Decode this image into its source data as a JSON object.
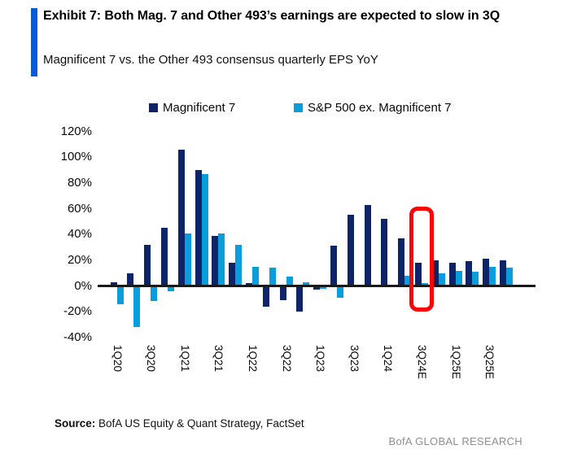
{
  "header": {
    "exhibit_title": "Exhibit 7: Both Mag. 7 and Other 493’s earnings are expected to slow in 3Q",
    "subtitle": "Magnificent 7 vs. the Other 493 consensus quarterly EPS YoY",
    "accent_color": "#0b5bd3"
  },
  "legend": {
    "items": [
      {
        "label": "Magnificent 7",
        "color": "#0d2468"
      },
      {
        "label": "S&P 500 ex. Magnificent 7",
        "color": "#089edd"
      }
    ]
  },
  "chart_data": {
    "type": "bar",
    "title": "Magnificent 7 vs. the Other 493 consensus quarterly EPS YoY",
    "categories": [
      "1Q20",
      "2Q20",
      "3Q20",
      "4Q20",
      "1Q21",
      "2Q21",
      "3Q21",
      "4Q21",
      "1Q22",
      "2Q22",
      "3Q22",
      "4Q22",
      "1Q23",
      "2Q23",
      "3Q23",
      "4Q23",
      "1Q24",
      "2Q24",
      "3Q24E",
      "4Q24E",
      "1Q25E",
      "2Q25E",
      "3Q25E",
      "4Q25E"
    ],
    "series": [
      {
        "name": "Magnificent 7",
        "color": "#0d2468",
        "values": [
          3,
          10,
          32,
          45,
          106,
          90,
          39,
          18,
          2,
          -16,
          -11,
          -20,
          -3,
          31,
          55,
          63,
          52,
          37,
          18,
          20,
          18,
          19,
          21,
          20
        ]
      },
      {
        "name": "S&P 500 ex. Magnificent 7",
        "color": "#089edd",
        "values": [
          -14,
          -32,
          -12,
          -4,
          41,
          87,
          41,
          32,
          15,
          14,
          7,
          3,
          -2,
          -9,
          1,
          1,
          1,
          8,
          2,
          10,
          12,
          11,
          15,
          14
        ]
      }
    ],
    "xlabel": "",
    "ylabel": "",
    "ylim": [
      -40,
      120
    ],
    "y_tick_labels": [
      "120%",
      "100%",
      "80%",
      "60%",
      "40%",
      "20%",
      "0%",
      "-20%",
      "-40%"
    ],
    "x_tick_labels_shown": [
      "1Q20",
      "3Q20",
      "1Q21",
      "3Q21",
      "1Q22",
      "3Q22",
      "1Q23",
      "3Q23",
      "1Q24",
      "3Q24E",
      "1Q25E",
      "3Q25E"
    ],
    "grid": false,
    "legend_position": "top",
    "highlight": {
      "category": "3Q24E",
      "box_color": "#fa0505"
    }
  },
  "source": {
    "prefix": "Source:",
    "text": " BofA US Equity & Quant Strategy, FactSet"
  },
  "footer": {
    "brand": "BofA GLOBAL RESEARCH"
  }
}
